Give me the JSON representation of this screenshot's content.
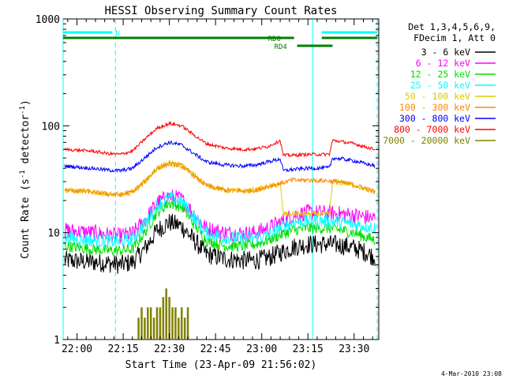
{
  "chart_data": {
    "type": "line",
    "title": "HESSI Observing Summary Count Rates",
    "xlabel": "Start Time (23-Apr-09 21:56:02)",
    "ylabel_main": "Count Rate (s",
    "ylabel_sup1": "-1",
    "ylabel_mid": " detector",
    "ylabel_sup2": "-1",
    "ylabel_end": ")",
    "y_scale": "log",
    "ylim": [
      1,
      1000
    ],
    "y_ticks": [
      {
        "value": 1,
        "label": "1"
      },
      {
        "value": 10,
        "label": "10"
      },
      {
        "value": 100,
        "label": "100"
      },
      {
        "value": 1000,
        "label": "1000"
      }
    ],
    "xlim_minutes": [
      -4.5,
      98
    ],
    "x_ticks": [
      {
        "minutes": 0,
        "label": "22:00"
      },
      {
        "minutes": 15,
        "label": "22:15"
      },
      {
        "minutes": 30,
        "label": "22:30"
      },
      {
        "minutes": 45,
        "label": "22:45"
      },
      {
        "minutes": 60,
        "label": "23:00"
      },
      {
        "minutes": 75,
        "label": "23:15"
      },
      {
        "minutes": 90,
        "label": "23:30"
      }
    ],
    "legend_header": [
      "Det 1,3,4,5,6,9,",
      "FDecim 1, Att 0"
    ],
    "legend_position": "right",
    "series": [
      {
        "name": "3 - 6 keV",
        "color": "#000000",
        "x": [
          -4,
          5,
          10,
          14,
          18,
          22,
          26,
          30,
          34,
          38,
          42,
          48,
          54,
          58,
          62,
          66,
          70,
          75,
          82,
          86,
          90,
          94,
          97
        ],
        "y": [
          5.5,
          5.3,
          5.2,
          5.0,
          5.3,
          7.0,
          10.5,
          12.5,
          11.5,
          8.5,
          6.3,
          5.7,
          5.5,
          5.5,
          5.8,
          6.5,
          7.3,
          7.8,
          7.8,
          7.6,
          7.2,
          6.5,
          5.8
        ]
      },
      {
        "name": "6 - 12 keV",
        "color": "#ff00ff",
        "x": [
          -4,
          5,
          10,
          14,
          18,
          22,
          26,
          30,
          34,
          38,
          42,
          48,
          54,
          58,
          62,
          66,
          70,
          75,
          82,
          86,
          90,
          94,
          97
        ],
        "y": [
          10.5,
          10.0,
          9.6,
          9.3,
          9.8,
          13.0,
          19.0,
          22.0,
          20.5,
          15.0,
          11.0,
          10.0,
          9.8,
          10.0,
          11.0,
          12.5,
          14.5,
          15.5,
          15.3,
          15.0,
          14.5,
          14.0,
          13.5
        ]
      },
      {
        "name": "12 - 25 keV",
        "color": "#00dd00",
        "x": [
          -4,
          5,
          10,
          14,
          18,
          22,
          26,
          30,
          34,
          38,
          42,
          48,
          54,
          58,
          62,
          66,
          70,
          75,
          82,
          86,
          90,
          94,
          97
        ],
        "y": [
          7.5,
          7.0,
          6.8,
          6.8,
          7.0,
          10.0,
          15.5,
          19.0,
          17.5,
          12.0,
          8.5,
          7.5,
          7.5,
          7.8,
          8.5,
          9.5,
          10.5,
          11.0,
          11.0,
          10.5,
          10.0,
          9.0,
          8.5
        ]
      },
      {
        "name": "25 - 50 keV",
        "color": "#00ffff",
        "x": [
          -4,
          5,
          10,
          14,
          18,
          22,
          26,
          30,
          34,
          38,
          42,
          48,
          54,
          58,
          62,
          66,
          70,
          75,
          82,
          86,
          90,
          94,
          97
        ],
        "y": [
          9.0,
          8.5,
          8.3,
          8.3,
          8.8,
          12.0,
          18.0,
          21.0,
          19.5,
          14.0,
          10.0,
          9.0,
          8.8,
          9.0,
          9.5,
          11.0,
          12.5,
          13.0,
          12.8,
          12.5,
          12.0,
          11.5,
          11.0
        ]
      },
      {
        "name": "50 - 100 keV",
        "color": "#ddcc00",
        "x": [
          -4,
          5,
          10,
          14,
          18,
          22,
          26,
          30,
          34,
          38,
          42,
          48,
          54,
          58,
          62,
          66,
          67,
          70,
          75,
          82,
          83,
          86,
          90,
          94,
          97
        ],
        "y": [
          25,
          24,
          23,
          22.5,
          24,
          30,
          40,
          45,
          43,
          35,
          28,
          25,
          24.5,
          25,
          27,
          28.5,
          15.0,
          15.0,
          15.0,
          15.0,
          30.0,
          29.5,
          28,
          25.5,
          24
        ]
      },
      {
        "name": "100 - 300 keV",
        "color": "#ff8800",
        "x": [
          -4,
          5,
          10,
          14,
          18,
          22,
          26,
          30,
          34,
          38,
          42,
          48,
          54,
          58,
          62,
          66,
          70,
          75,
          82,
          86,
          90,
          94,
          97
        ],
        "y": [
          25,
          24,
          23,
          22.5,
          24,
          30,
          40,
          44,
          42,
          34,
          27.5,
          25,
          24.5,
          25,
          27,
          29,
          31,
          31,
          30.5,
          29.5,
          28,
          25.5,
          24
        ]
      },
      {
        "name": "300 - 800 keV",
        "color": "#0000ff",
        "x": [
          -4,
          5,
          10,
          14,
          18,
          22,
          26,
          30,
          34,
          38,
          42,
          48,
          54,
          58,
          62,
          66,
          67,
          70,
          75,
          82,
          83,
          86,
          90,
          94,
          97
        ],
        "y": [
          42,
          40,
          38.5,
          38,
          40,
          50,
          63,
          70,
          66,
          55,
          46,
          43,
          42,
          43,
          46,
          49,
          38,
          39,
          40,
          40.5,
          50,
          49,
          47,
          44,
          42
        ]
      },
      {
        "name": "800 - 7000 keV",
        "color": "#ff0000",
        "x": [
          -4,
          5,
          10,
          14,
          18,
          22,
          26,
          30,
          34,
          38,
          42,
          48,
          54,
          58,
          62,
          66,
          67,
          70,
          75,
          82,
          83,
          86,
          90,
          94,
          97
        ],
        "y": [
          60,
          58,
          55,
          54,
          58,
          75,
          95,
          105,
          100,
          82,
          68,
          62,
          60,
          61,
          64,
          73,
          53,
          53,
          54,
          54,
          73,
          71,
          68,
          63,
          60
        ]
      },
      {
        "name": "7000 - 20000 keV",
        "color": "#808000",
        "x": [
          20,
          21,
          22,
          23,
          24,
          25,
          26,
          27,
          28,
          29,
          30,
          31,
          32,
          33,
          34,
          35,
          36
        ],
        "y": [
          1.6,
          2.0,
          1.6,
          2.0,
          2.0,
          1.6,
          2.0,
          2.0,
          2.5,
          3.0,
          2.5,
          2.0,
          2.0,
          1.6,
          2.0,
          1.6,
          2.0
        ]
      }
    ],
    "vertical_lines": [
      {
        "minutes": -4.5,
        "style": "solid"
      },
      {
        "minutes": 12.5,
        "style": "dashed"
      },
      {
        "minutes": 76.5,
        "style": "solid"
      },
      {
        "minutes": 97.5,
        "style": "dashed"
      }
    ],
    "flag_bars": [
      {
        "label": "N",
        "color": "#00ffff",
        "segments": [
          [
            -4.5,
            11.5
          ]
        ],
        "y_level": 1
      },
      {
        "label": "RD0",
        "color": "#008000",
        "segments": [
          [
            -4.5,
            70.5
          ],
          [
            79.5,
            97.5
          ]
        ],
        "y_level": 2
      },
      {
        "label": "RD4",
        "color": "#008000",
        "segments": [
          [
            71.5,
            83
          ]
        ],
        "y_level": 3
      },
      {
        "label": "",
        "color": "#00ffff",
        "segments": [
          [
            79.5,
            97.5
          ]
        ],
        "y_level": 1
      }
    ],
    "footer_date": "4-Mar-2010 23:08"
  }
}
